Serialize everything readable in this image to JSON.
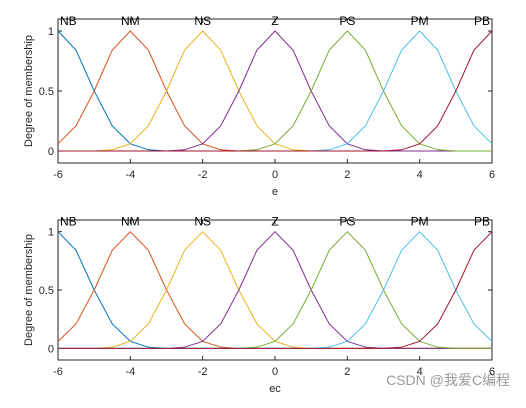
{
  "chart_data": [
    {
      "type": "line",
      "x_label": "e",
      "y_label": "Degree of membership",
      "x": [
        -6,
        -5.5,
        -5,
        -4.5,
        -4,
        -3.5,
        -3,
        -2.5,
        -2,
        -1.5,
        -1,
        -0.5,
        0,
        0.5,
        1,
        1.5,
        2,
        2.5,
        3,
        3.5,
        4,
        4.5,
        5,
        5.5,
        6
      ],
      "xlim": [
        -6,
        6
      ],
      "ylim": [
        -0.1,
        1.1
      ],
      "xticks": [
        -6,
        -4,
        -2,
        0,
        2,
        4,
        6
      ],
      "yticks": [
        0,
        0.5,
        1
      ],
      "series": [
        {
          "name": "NB",
          "color": "#0072bd",
          "values": [
            1,
            0.84,
            0.5,
            0.21,
            0.06,
            0.01,
            0,
            0,
            0,
            0,
            0,
            0,
            0,
            0,
            0,
            0,
            0,
            0,
            0,
            0,
            0,
            0,
            0,
            0,
            0
          ]
        },
        {
          "name": "NM",
          "color": "#d95319",
          "values": [
            0.06,
            0.21,
            0.5,
            0.84,
            1,
            0.84,
            0.5,
            0.21,
            0.06,
            0.01,
            0,
            0,
            0,
            0,
            0,
            0,
            0,
            0,
            0,
            0,
            0,
            0,
            0,
            0,
            0
          ]
        },
        {
          "name": "NS",
          "color": "#edb120",
          "values": [
            0,
            0,
            0,
            0.01,
            0.06,
            0.21,
            0.5,
            0.84,
            1,
            0.84,
            0.5,
            0.21,
            0.06,
            0.01,
            0,
            0,
            0,
            0,
            0,
            0,
            0,
            0,
            0,
            0,
            0
          ]
        },
        {
          "name": "Z",
          "color": "#7e2f8e",
          "values": [
            0,
            0,
            0,
            0,
            0,
            0,
            0,
            0.01,
            0.06,
            0.21,
            0.5,
            0.84,
            1,
            0.84,
            0.5,
            0.21,
            0.06,
            0.01,
            0,
            0,
            0,
            0,
            0,
            0,
            0
          ]
        },
        {
          "name": "PS",
          "color": "#77ac30",
          "values": [
            0,
            0,
            0,
            0,
            0,
            0,
            0,
            0,
            0,
            0,
            0,
            0.01,
            0.06,
            0.21,
            0.5,
            0.84,
            1,
            0.84,
            0.5,
            0.21,
            0.06,
            0.01,
            0,
            0,
            0
          ]
        },
        {
          "name": "PM",
          "color": "#4dbeee",
          "values": [
            0,
            0,
            0,
            0,
            0,
            0,
            0,
            0,
            0,
            0,
            0,
            0,
            0,
            0,
            0,
            0.01,
            0.06,
            0.21,
            0.5,
            0.84,
            1,
            0.84,
            0.5,
            0.21,
            0.06
          ]
        },
        {
          "name": "PB",
          "color": "#a2142f",
          "values": [
            0,
            0,
            0,
            0,
            0,
            0,
            0,
            0,
            0,
            0,
            0,
            0,
            0,
            0,
            0,
            0,
            0,
            0,
            0,
            0.01,
            0.06,
            0.21,
            0.5,
            0.84,
            1
          ]
        }
      ]
    },
    {
      "type": "line",
      "x_label": "ec",
      "y_label": "Degree of membership",
      "x": [
        -6,
        -5.5,
        -5,
        -4.5,
        -4,
        -3.5,
        -3,
        -2.5,
        -2,
        -1.5,
        -1,
        -0.5,
        0,
        0.5,
        1,
        1.5,
        2,
        2.5,
        3,
        3.5,
        4,
        4.5,
        5,
        5.5,
        6
      ],
      "xlim": [
        -6,
        6
      ],
      "ylim": [
        -0.1,
        1.1
      ],
      "xticks": [
        -6,
        -4,
        -2,
        0,
        2,
        4,
        6
      ],
      "yticks": [
        0,
        0.5,
        1
      ],
      "series": [
        {
          "name": "NB",
          "color": "#0072bd",
          "values": [
            1,
            0.84,
            0.5,
            0.21,
            0.06,
            0.01,
            0,
            0,
            0,
            0,
            0,
            0,
            0,
            0,
            0,
            0,
            0,
            0,
            0,
            0,
            0,
            0,
            0,
            0,
            0
          ]
        },
        {
          "name": "NM",
          "color": "#d95319",
          "values": [
            0.06,
            0.21,
            0.5,
            0.84,
            1,
            0.84,
            0.5,
            0.21,
            0.06,
            0.01,
            0,
            0,
            0,
            0,
            0,
            0,
            0,
            0,
            0,
            0,
            0,
            0,
            0,
            0,
            0
          ]
        },
        {
          "name": "NS",
          "color": "#edb120",
          "values": [
            0,
            0,
            0,
            0.01,
            0.06,
            0.21,
            0.5,
            0.84,
            1,
            0.84,
            0.5,
            0.21,
            0.06,
            0.01,
            0,
            0,
            0,
            0,
            0,
            0,
            0,
            0,
            0,
            0,
            0
          ]
        },
        {
          "name": "Z",
          "color": "#7e2f8e",
          "values": [
            0,
            0,
            0,
            0,
            0,
            0,
            0,
            0.01,
            0.06,
            0.21,
            0.5,
            0.84,
            1,
            0.84,
            0.5,
            0.21,
            0.06,
            0.01,
            0,
            0,
            0,
            0,
            0,
            0,
            0
          ]
        },
        {
          "name": "PS",
          "color": "#77ac30",
          "values": [
            0,
            0,
            0,
            0,
            0,
            0,
            0,
            0,
            0,
            0,
            0,
            0.01,
            0.06,
            0.21,
            0.5,
            0.84,
            1,
            0.84,
            0.5,
            0.21,
            0.06,
            0.01,
            0,
            0,
            0
          ]
        },
        {
          "name": "PM",
          "color": "#4dbeee",
          "values": [
            0,
            0,
            0,
            0,
            0,
            0,
            0,
            0,
            0,
            0,
            0,
            0,
            0,
            0,
            0,
            0.01,
            0.06,
            0.21,
            0.5,
            0.84,
            1,
            0.84,
            0.5,
            0.21,
            0.06
          ]
        },
        {
          "name": "PB",
          "color": "#a2142f",
          "values": [
            0,
            0,
            0,
            0,
            0,
            0,
            0,
            0,
            0,
            0,
            0,
            0,
            0,
            0,
            0,
            0,
            0,
            0,
            0,
            0.01,
            0.06,
            0.21,
            0.5,
            0.84,
            1
          ]
        }
      ]
    }
  ],
  "watermark": "CSDN @我爱C编程"
}
